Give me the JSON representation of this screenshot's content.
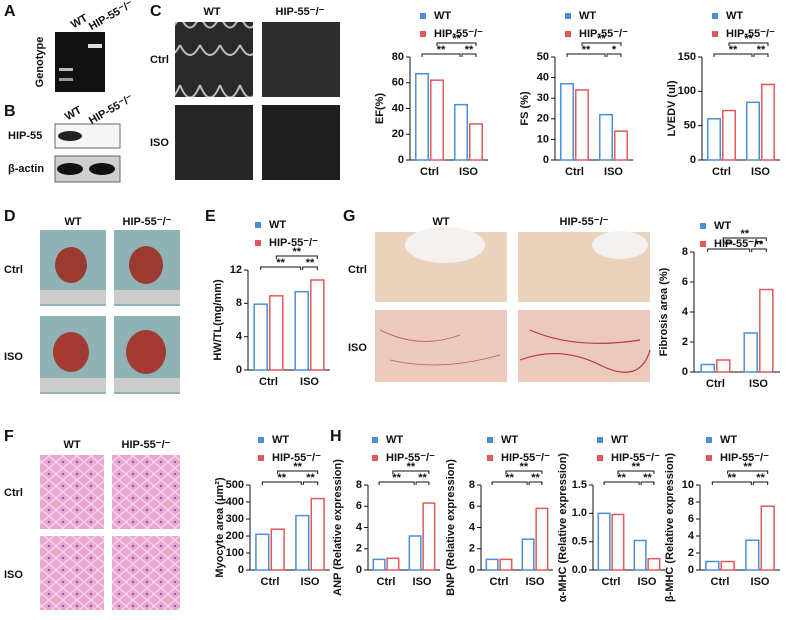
{
  "panels": {
    "letters": [
      "A",
      "B",
      "C",
      "D",
      "E",
      "F",
      "G",
      "H"
    ],
    "a": {
      "columns": [
        "WT",
        "HIP-55⁻/⁻"
      ],
      "row": "Genotype"
    },
    "b": {
      "columns": [
        "WT",
        "HIP-55⁻/⁻"
      ],
      "rows": [
        "HIP-55",
        "β-actin"
      ]
    },
    "c": {
      "columns": [
        "WT",
        "HIP-55⁻/⁻"
      ],
      "rows": [
        "Ctrl",
        "ISO"
      ]
    },
    "d": {
      "columns": [
        "WT",
        "HIP-55⁻/⁻"
      ],
      "rows": [
        "Ctrl",
        "ISO"
      ]
    },
    "f": {
      "columns": [
        "WT",
        "HIP-55⁻/⁻"
      ],
      "rows": [
        "Ctrl",
        "ISO"
      ]
    },
    "g": {
      "columns": [
        "WT",
        "HIP-55⁻/⁻"
      ],
      "rows": [
        "Ctrl",
        "ISO"
      ]
    }
  },
  "chart_data": [
    {
      "type": "bar",
      "ylabel": "EF(%)",
      "categories": [
        "Ctrl",
        "ISO"
      ],
      "series": [
        {
          "name": "WT",
          "color": "#4a90d9",
          "values": [
            67,
            43
          ]
        },
        {
          "name": "HIP-55⁻/⁻",
          "color": "#e05a5a",
          "values": [
            62,
            28
          ]
        }
      ],
      "ylim": [
        0,
        80
      ],
      "yticks": [
        0,
        20,
        40,
        60,
        80
      ],
      "significance": [
        "**",
        "**",
        "**"
      ]
    },
    {
      "type": "bar",
      "ylabel": "FS (%)",
      "categories": [
        "Ctrl",
        "ISO"
      ],
      "series": [
        {
          "name": "WT",
          "color": "#4a90d9",
          "values": [
            37,
            22
          ]
        },
        {
          "name": "HIP-55⁻/⁻",
          "color": "#e05a5a",
          "values": [
            34,
            14
          ]
        }
      ],
      "ylim": [
        0,
        50
      ],
      "yticks": [
        0,
        10,
        20,
        30,
        40,
        50
      ],
      "significance": [
        "**",
        "**",
        "*"
      ]
    },
    {
      "type": "bar",
      "ylabel": "LVEDV (ul)",
      "categories": [
        "Ctrl",
        "ISO"
      ],
      "series": [
        {
          "name": "WT",
          "color": "#4a90d9",
          "values": [
            60,
            84
          ]
        },
        {
          "name": "HIP-55⁻/⁻",
          "color": "#e05a5a",
          "values": [
            72,
            110
          ]
        }
      ],
      "ylim": [
        0,
        150
      ],
      "yticks": [
        0,
        50,
        100,
        150
      ],
      "significance": [
        "**",
        "**",
        "**"
      ]
    },
    {
      "type": "bar",
      "ylabel": "HW/TL(mg/mm)",
      "categories": [
        "Ctrl",
        "ISO"
      ],
      "series": [
        {
          "name": "WT",
          "color": "#4a90d9",
          "values": [
            7.9,
            9.4
          ]
        },
        {
          "name": "HIP-55⁻/⁻",
          "color": "#e05a5a",
          "values": [
            8.9,
            10.8
          ]
        }
      ],
      "ylim": [
        0,
        12
      ],
      "yticks": [
        0,
        4,
        8,
        12
      ],
      "significance": [
        "**",
        "**",
        "**"
      ]
    },
    {
      "type": "bar",
      "ylabel": "Fibrosis area (%)",
      "categories": [
        "Ctrl",
        "ISO"
      ],
      "series": [
        {
          "name": "WT",
          "color": "#4a90d9",
          "values": [
            0.5,
            2.6
          ]
        },
        {
          "name": "HIP-55⁻/⁻",
          "color": "#e05a5a",
          "values": [
            0.8,
            5.5
          ]
        }
      ],
      "ylim": [
        0,
        8
      ],
      "yticks": [
        0,
        2,
        4,
        6,
        8
      ],
      "significance": [
        "**",
        "**",
        "**"
      ]
    },
    {
      "type": "bar",
      "ylabel": "Myocyte area (μm²)",
      "categories": [
        "Ctrl",
        "ISO"
      ],
      "series": [
        {
          "name": "WT",
          "color": "#4a90d9",
          "values": [
            210,
            320
          ]
        },
        {
          "name": "HIP-55⁻/⁻",
          "color": "#e05a5a",
          "values": [
            240,
            420
          ]
        }
      ],
      "ylim": [
        0,
        500
      ],
      "yticks": [
        0,
        100,
        200,
        300,
        400,
        500
      ],
      "significance": [
        "**",
        "**",
        "**"
      ]
    },
    {
      "type": "bar",
      "ylabel": "ANP (Relative expression)",
      "categories": [
        "Ctrl",
        "ISO"
      ],
      "series": [
        {
          "name": "WT",
          "color": "#4a90d9",
          "values": [
            1.0,
            3.2
          ]
        },
        {
          "name": "HIP-55⁻/⁻",
          "color": "#e05a5a",
          "values": [
            1.1,
            6.3
          ]
        }
      ],
      "ylim": [
        0,
        8
      ],
      "yticks": [
        0,
        2,
        4,
        6,
        8
      ],
      "significance": [
        "**",
        "**",
        "**"
      ]
    },
    {
      "type": "bar",
      "ylabel": "BNP (Relative expression)",
      "categories": [
        "Ctrl",
        "ISO"
      ],
      "series": [
        {
          "name": "WT",
          "color": "#4a90d9",
          "values": [
            1.0,
            2.9
          ]
        },
        {
          "name": "HIP-55⁻/⁻",
          "color": "#e05a5a",
          "values": [
            1.0,
            5.8
          ]
        }
      ],
      "ylim": [
        0,
        8
      ],
      "yticks": [
        0,
        2,
        4,
        6,
        8
      ],
      "significance": [
        "**",
        "**",
        "**"
      ]
    },
    {
      "type": "bar",
      "ylabel": "α-MHC (Relative expression)",
      "categories": [
        "Ctrl",
        "ISO"
      ],
      "series": [
        {
          "name": "WT",
          "color": "#4a90d9",
          "values": [
            1.0,
            0.52
          ]
        },
        {
          "name": "HIP-55⁻/⁻",
          "color": "#e05a5a",
          "values": [
            0.98,
            0.2
          ]
        }
      ],
      "ylim": [
        0,
        1.5
      ],
      "yticks": [
        {
          "value": 0,
          "label": "0.0"
        },
        0.5,
        {
          "value": 1,
          "label": "1.0"
        },
        1.5
      ],
      "significance": [
        "**",
        "**",
        "**"
      ]
    },
    {
      "type": "bar",
      "ylabel": "β-MHC (Relative expression)",
      "categories": [
        "Ctrl",
        "ISO"
      ],
      "series": [
        {
          "name": "WT",
          "color": "#4a90d9",
          "values": [
            1.0,
            3.5
          ]
        },
        {
          "name": "HIP-55⁻/⁻",
          "color": "#e05a5a",
          "values": [
            1.0,
            7.5
          ]
        }
      ],
      "ylim": [
        0,
        10
      ],
      "yticks": [
        0,
        2,
        4,
        6,
        8,
        10
      ],
      "significance": [
        "**",
        "**",
        "**"
      ]
    }
  ]
}
